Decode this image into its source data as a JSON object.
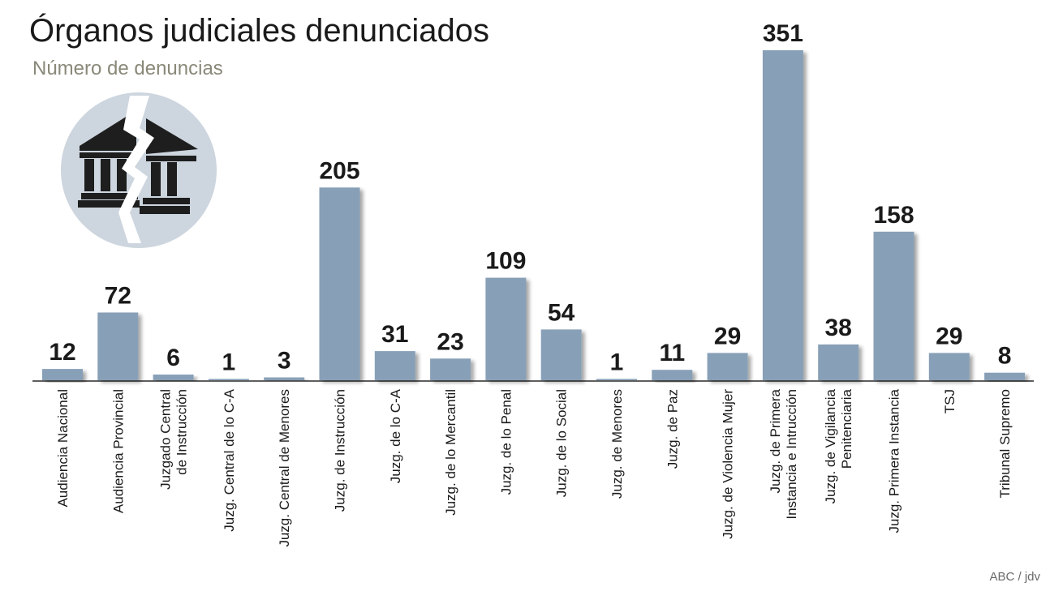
{
  "chart_data": {
    "type": "bar",
    "title": "Órganos judiciales denunciados",
    "subtitle": "Número de denuncias",
    "categories": [
      [
        "Audiencia Nacional"
      ],
      [
        "Audiencia Provincial"
      ],
      [
        "Juzgado Central",
        "de Instrucción"
      ],
      [
        "Juzg. Central de lo C-A"
      ],
      [
        "Juzg. Central de Menores"
      ],
      [
        "Juzg. de Instrucción"
      ],
      [
        "Juzg. de lo C-A"
      ],
      [
        "Juzg. de lo Mercantil"
      ],
      [
        "Juzg. de lo Penal"
      ],
      [
        "Juzg. de lo Social"
      ],
      [
        "Juzg. de Menores"
      ],
      [
        "Juzg. de Paz"
      ],
      [
        "Juzg. de Violencia Mujer"
      ],
      [
        "Juzg. de Primera",
        "Instancia e Intrucción"
      ],
      [
        "Juzg. de Vigilancia",
        "Penitenciaria"
      ],
      [
        "Juzg. Primera Instancia"
      ],
      [
        "TSJ"
      ],
      [
        "Tribunal Supremo"
      ]
    ],
    "values": [
      12,
      72,
      6,
      1,
      3,
      205,
      31,
      23,
      109,
      54,
      1,
      11,
      29,
      351,
      38,
      158,
      29,
      8
    ],
    "ylim": [
      0,
      351
    ],
    "grid": false,
    "legend": "none",
    "bar_color": "#88a0b7",
    "xlabel": "",
    "ylabel": ""
  },
  "source": "ABC / jdv",
  "icon": "broken-courthouse-icon"
}
